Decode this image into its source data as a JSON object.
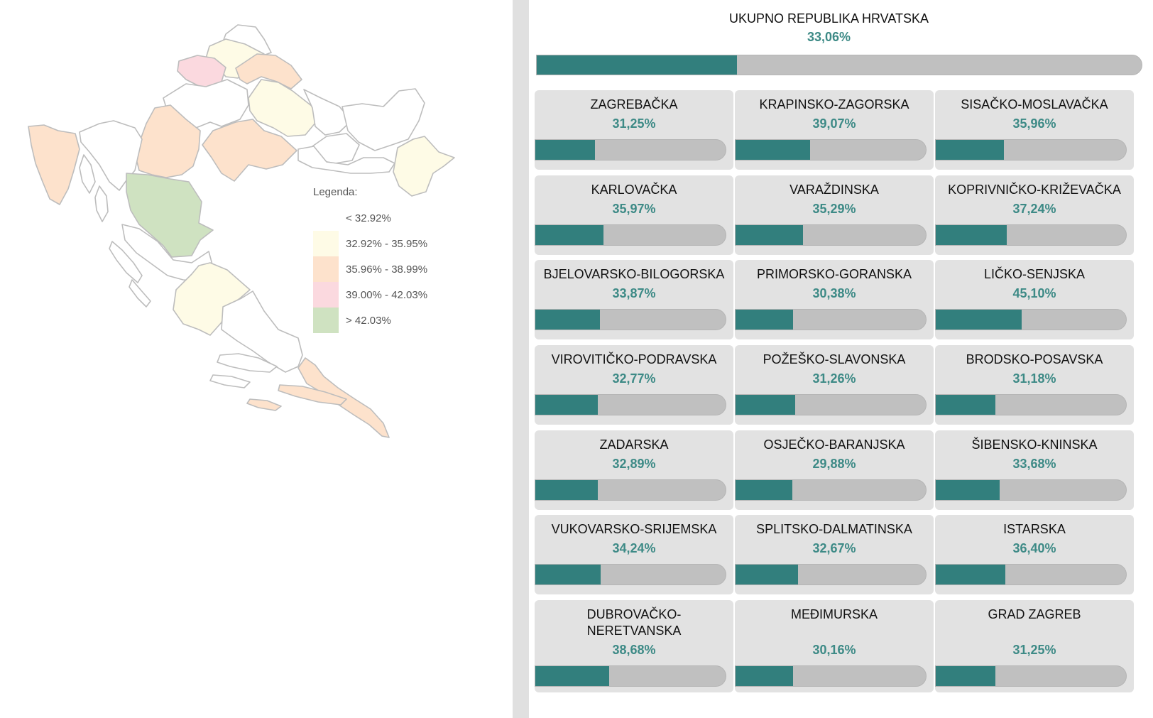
{
  "colors": {
    "bar_fill": "#327f7d",
    "bar_track": "#c0c0c0",
    "card_bg": "#e2e2e2",
    "pct_text": "#3d8a86",
    "legend": [
      "#ffffff",
      "#fefbe6",
      "#fde2cc",
      "#fbd9df",
      "#cfe2c1"
    ]
  },
  "legend": {
    "title": "Legenda:",
    "items": [
      {
        "label": "< 32.92%",
        "color": "#ffffff"
      },
      {
        "label": "32.92% - 35.95%",
        "color": "#fefbe6"
      },
      {
        "label": "35.96% - 38.99%",
        "color": "#fde2cc"
      },
      {
        "label": "39.00% - 42.03%",
        "color": "#fbd9df"
      },
      {
        "label": "> 42.03%",
        "color": "#cfe2c1"
      }
    ]
  },
  "total": {
    "title": "UKUPNO REPUBLIKA HRVATSKA",
    "pct_label": "33,06%",
    "value": 33.06
  },
  "counties": [
    {
      "name": "ZAGREBAČKA",
      "pct_label": "31,25%",
      "value": 31.25
    },
    {
      "name": "KRAPINSKO-ZAGORSKA",
      "pct_label": "39,07%",
      "value": 39.07
    },
    {
      "name": "SISAČKO-MOSLAVAČKA",
      "pct_label": "35,96%",
      "value": 35.96
    },
    {
      "name": "KARLOVAČKA",
      "pct_label": "35,97%",
      "value": 35.97
    },
    {
      "name": "VARAŽDINSKA",
      "pct_label": "35,29%",
      "value": 35.29
    },
    {
      "name": "KOPRIVNIČKO-KRIŽEVAČKA",
      "pct_label": "37,24%",
      "value": 37.24
    },
    {
      "name": "BJELOVARSKO-BILOGORSKA",
      "pct_label": "33,87%",
      "value": 33.87
    },
    {
      "name": "PRIMORSKO-GORANSKA",
      "pct_label": "30,38%",
      "value": 30.38
    },
    {
      "name": "LIČKO-SENJSKA",
      "pct_label": "45,10%",
      "value": 45.1
    },
    {
      "name": "VIROVITIČKO-PODRAVSKA",
      "pct_label": "32,77%",
      "value": 32.77
    },
    {
      "name": "POŽEŠKO-SLAVONSKA",
      "pct_label": "31,26%",
      "value": 31.26
    },
    {
      "name": "BRODSKO-POSAVSKA",
      "pct_label": "31,18%",
      "value": 31.18
    },
    {
      "name": "ZADARSKA",
      "pct_label": "32,89%",
      "value": 32.89
    },
    {
      "name": "OSJEČKO-BARANJSKA",
      "pct_label": "29,88%",
      "value": 29.88
    },
    {
      "name": "ŠIBENSKO-KNINSKA",
      "pct_label": "33,68%",
      "value": 33.68
    },
    {
      "name": "VUKOVARSKO-SRIJEMSKA",
      "pct_label": "34,24%",
      "value": 34.24
    },
    {
      "name": "SPLITSKO-DALMATINSKA",
      "pct_label": "32,67%",
      "value": 32.67
    },
    {
      "name": "ISTARSKA",
      "pct_label": "36,40%",
      "value": 36.4
    },
    {
      "name": "DUBROVAČKO-NERETVANSKA",
      "name_lines": [
        "DUBROVAČKO-",
        "NERETVANSKA"
      ],
      "pct_label": "38,68%",
      "value": 38.68
    },
    {
      "name": "MEĐIMURSKA",
      "pct_label": "30,16%",
      "value": 30.16
    },
    {
      "name": "GRAD ZAGREB",
      "pct_label": "31,25%",
      "value": 31.25
    }
  ]
}
